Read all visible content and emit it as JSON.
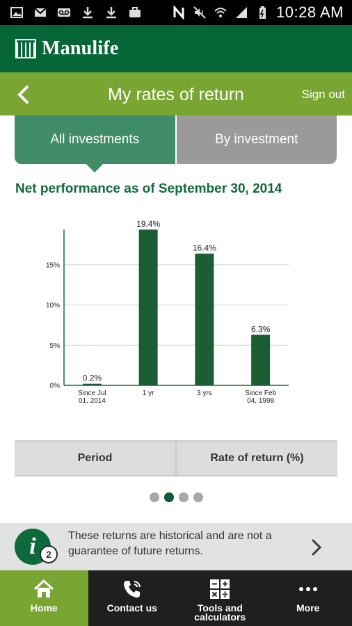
{
  "status_bar": {
    "time": "10:28 AM"
  },
  "brand": {
    "name": "Manulife"
  },
  "header": {
    "title": "My rates of return",
    "sign_out": "Sign out"
  },
  "tabs": [
    {
      "label": "All investments",
      "selected": true
    },
    {
      "label": "By investment",
      "selected": false
    }
  ],
  "performance_title": "Net performance as of September 30, 2014",
  "chart_data": {
    "type": "bar",
    "categories": [
      "Since Jul 01, 2014",
      "1 yr",
      "3 yrs",
      "Since Feb 04, 1998"
    ],
    "values": [
      0.2,
      19.4,
      16.4,
      6.3
    ],
    "value_labels": [
      "0.2%",
      "19.4%",
      "16.4%",
      "6.3%"
    ],
    "y_ticks": [
      "0%",
      "5%",
      "10%",
      "15%"
    ],
    "ylim": [
      0,
      19.4
    ],
    "title": "",
    "xlabel": "",
    "ylabel": "",
    "grid": true,
    "bar_color": "#1b5e34"
  },
  "table": {
    "headers": [
      "Period",
      "Rate of return (%)"
    ]
  },
  "pager": {
    "count": 4,
    "active_index": 1
  },
  "info_banner": {
    "badge_count": "2",
    "text": "These returns are historical and are not a guarantee of future returns."
  },
  "bottom_nav": [
    {
      "label": "Home",
      "icon": "home-icon",
      "active": true
    },
    {
      "label": "Contact us",
      "icon": "phone-icon",
      "active": false
    },
    {
      "label": "Tools and\ncalculators",
      "icon": "calculator-icon",
      "active": false
    },
    {
      "label": "More",
      "icon": "more-icon",
      "active": false
    }
  ],
  "colors": {
    "brand_green": "#076637",
    "title_bar_green": "#79a632",
    "tab_selected": "#3f8c67",
    "tab_unselected": "#9a9a9a"
  }
}
